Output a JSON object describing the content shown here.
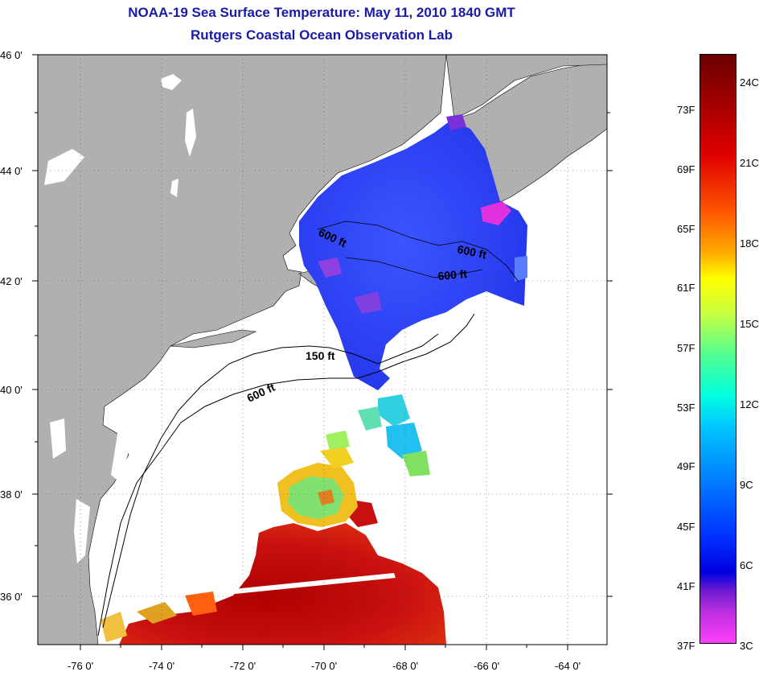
{
  "title": {
    "line1": "NOAA-19 Sea Surface Temperature:  May 11, 2010 1840 GMT",
    "line2": "Rutgers Coastal Ocean Observation Lab"
  },
  "map": {
    "lat_labels": [
      "46 0'",
      "44 0'",
      "42 0'",
      "40 0'",
      "38 0'",
      "36 0'"
    ],
    "lon_labels": [
      "-76 0'",
      "-74 0'",
      "-72 0'",
      "-70 0'",
      "-68 0'",
      "-66 0'",
      "-64 0'"
    ],
    "contour_labels": [
      "600 ft",
      "600 ft",
      "600 ft",
      "150 ft",
      "600 ft"
    ],
    "colors": {
      "land": "#b0b0b0",
      "ocean_no_data": "#ffffff",
      "cold": "#2a3cff",
      "warm": "#c00000"
    }
  },
  "colorbar": {
    "fahrenheit": [
      "73F",
      "69F",
      "65F",
      "61F",
      "57F",
      "53F",
      "49F",
      "45F",
      "41F",
      "37F"
    ],
    "celsius": [
      "24C",
      "21C",
      "18C",
      "15C",
      "12C",
      "9C",
      "6C",
      "3C"
    ]
  }
}
